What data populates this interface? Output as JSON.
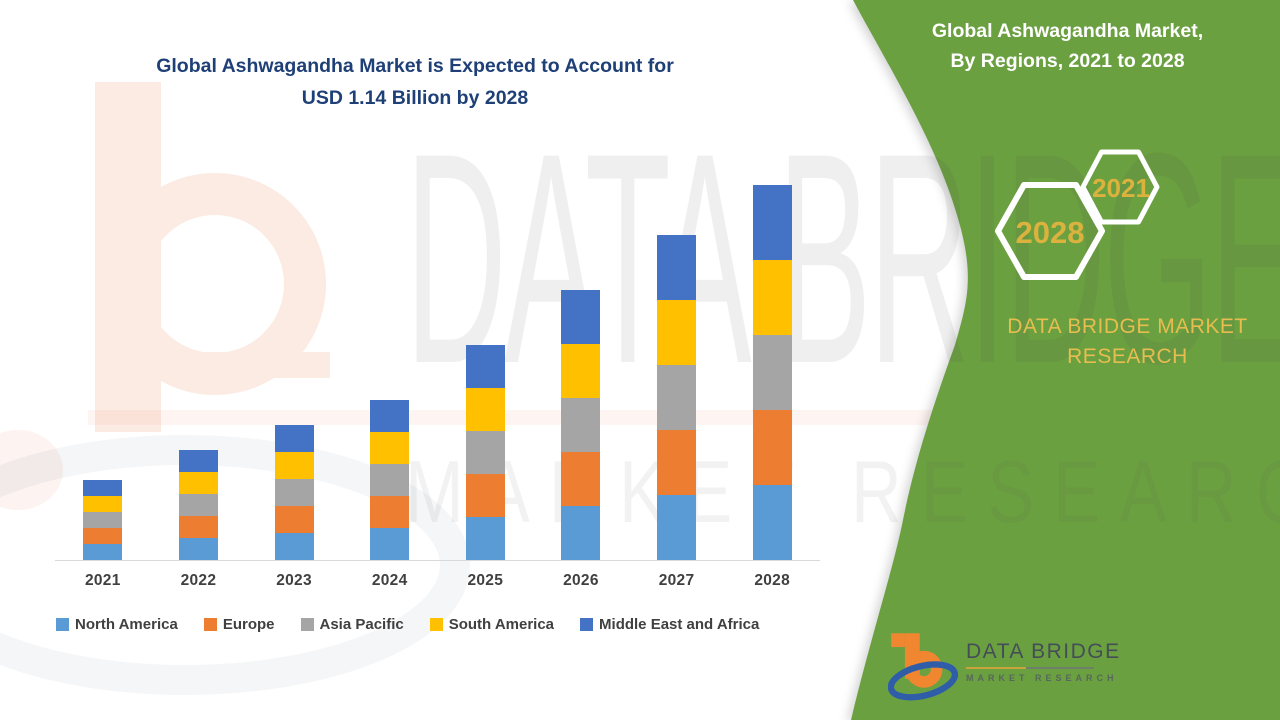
{
  "page_title": "Global Ashwagandha Market infographic",
  "chart": {
    "title_line1": "Global Ashwagandha Market is Expected to Account for",
    "title_line2": "USD 1.14 Billion by 2028",
    "title_color": "#1F4077",
    "axis_line_color": "#D9D9D9",
    "label_color": "#404040"
  },
  "chart_data": {
    "type": "bar",
    "stacked": true,
    "title": "Global Ashwagandha Market is Expected to Account for USD 1.14 Billion by 2028",
    "unit": "USD Billion",
    "categories": [
      "2021",
      "2022",
      "2023",
      "2024",
      "2025",
      "2026",
      "2027",
      "2028"
    ],
    "series": [
      {
        "name": "North America",
        "color": "#5B9BD5",
        "values": [
          0.049,
          0.066,
          0.082,
          0.097,
          0.131,
          0.163,
          0.195,
          0.228
        ]
      },
      {
        "name": "Europe",
        "color": "#ED7D31",
        "values": [
          0.049,
          0.066,
          0.082,
          0.097,
          0.131,
          0.163,
          0.195,
          0.228
        ]
      },
      {
        "name": "Asia Pacific",
        "color": "#A5A5A5",
        "values": [
          0.049,
          0.066,
          0.082,
          0.097,
          0.131,
          0.163,
          0.195,
          0.228
        ]
      },
      {
        "name": "South America",
        "color": "#FFC000",
        "values": [
          0.049,
          0.066,
          0.082,
          0.097,
          0.131,
          0.163,
          0.195,
          0.228
        ]
      },
      {
        "name": "Middle East and Africa",
        "color": "#4472C4",
        "values": [
          0.049,
          0.066,
          0.082,
          0.097,
          0.131,
          0.163,
          0.195,
          0.228
        ]
      }
    ],
    "totals_estimated": [
      0.245,
      0.33,
      0.41,
      0.49,
      0.65,
      0.82,
      0.97,
      1.14
    ],
    "ylim": [
      0,
      1.2
    ],
    "grid": false,
    "legend_position": "bottom",
    "xlabel": "",
    "ylabel": ""
  },
  "side_panel": {
    "title_line1": "Global Ashwagandha Market,",
    "title_line2": "By Regions, 2021 to 2028",
    "hexagon_small_label": "2021",
    "hexagon_large_label": "2028",
    "brand_line1": "DATA BRIDGE MARKET",
    "brand_line2": "RESEARCH",
    "colors": {
      "background": "#6BA041",
      "accent_gold": "#E6BD4E",
      "year_gold": "#DCB23F",
      "title_text": "#FFFFFF"
    }
  },
  "watermark": {
    "line1": "DATA BRIDGE",
    "line2": "MARKET RESEARCH"
  },
  "footer_logo": {
    "name_text": "DATA BRIDGE",
    "subtext": "MARKET RESEARCH"
  }
}
